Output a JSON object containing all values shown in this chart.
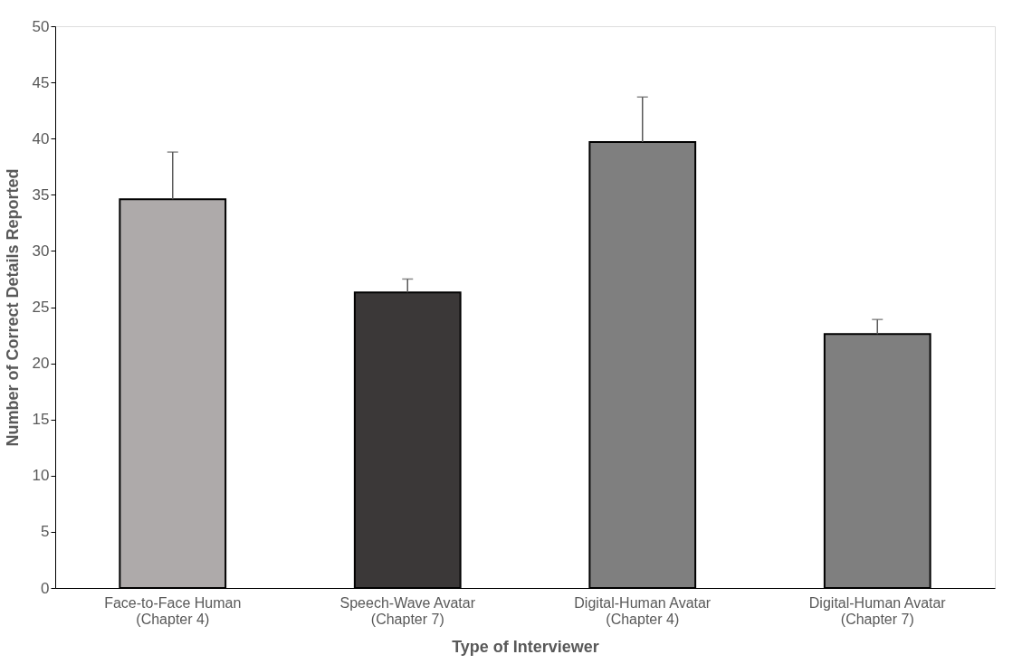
{
  "chart_data": {
    "type": "bar",
    "xlabel": "Type of Interviewer",
    "ylabel": "Number of Correct Details Reported",
    "categories": [
      "Face-to-Face Human\n(Chapter 4)",
      "Speech-Wave Avatar\n(Chapter 7)",
      "Digital-Human Avatar\n(Chapter 4)",
      "Digital-Human Avatar\n(Chapter 7)"
    ],
    "values": [
      34.6,
      26.3,
      39.7,
      22.6
    ],
    "colors": [
      "#aeaaaa",
      "#3b3838",
      "#7f7f7f",
      "#7f7f7f"
    ],
    "errors": [
      [
        34.6,
        38.8
      ],
      [
        26.3,
        27.5
      ],
      [
        39.7,
        43.7
      ],
      [
        22.6,
        23.9
      ]
    ],
    "ylim": [
      0,
      50
    ],
    "yticks": [
      0,
      5,
      10,
      15,
      20,
      25,
      30,
      35,
      40,
      45,
      50
    ],
    "grid": false
  }
}
